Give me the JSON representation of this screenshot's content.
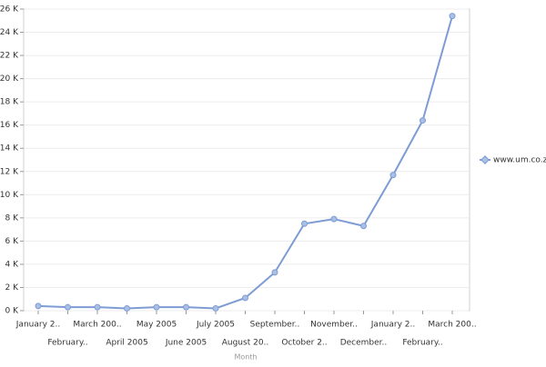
{
  "chart_data": {
    "type": "line",
    "x_label": "Month",
    "categories": [
      "January 2..",
      "February..",
      "March 200..",
      "April 2005",
      "May 2005",
      "June 2005",
      "July 2005",
      "August 20..",
      "September..",
      "October 2..",
      "November..",
      "December..",
      "January 2..",
      "February..",
      "March 200.."
    ],
    "series": [
      {
        "name": "www.um.co.za",
        "color": "#7d9cd4",
        "values": [
          400,
          300,
          300,
          200,
          300,
          300,
          200,
          1100,
          3300,
          7500,
          7900,
          7300,
          11700,
          16400,
          25400
        ]
      }
    ],
    "ylim": [
      0,
      26000
    ],
    "yticks": [
      {
        "value": 0,
        "label": "0 K"
      },
      {
        "value": 2000,
        "label": "2 K"
      },
      {
        "value": 4000,
        "label": "4 K"
      },
      {
        "value": 6000,
        "label": "6 K"
      },
      {
        "value": 8000,
        "label": "8 K"
      },
      {
        "value": 10000,
        "label": "10 K"
      },
      {
        "value": 12000,
        "label": "12 K"
      },
      {
        "value": 14000,
        "label": "14 K"
      },
      {
        "value": 16000,
        "label": "16 K"
      },
      {
        "value": 18000,
        "label": "18 K"
      },
      {
        "value": 20000,
        "label": "20 K"
      },
      {
        "value": 22000,
        "label": "22 K"
      },
      {
        "value": 24000,
        "label": "24 K"
      },
      {
        "value": 26000,
        "label": "26 K"
      }
    ],
    "grid": true,
    "legend": "right"
  }
}
